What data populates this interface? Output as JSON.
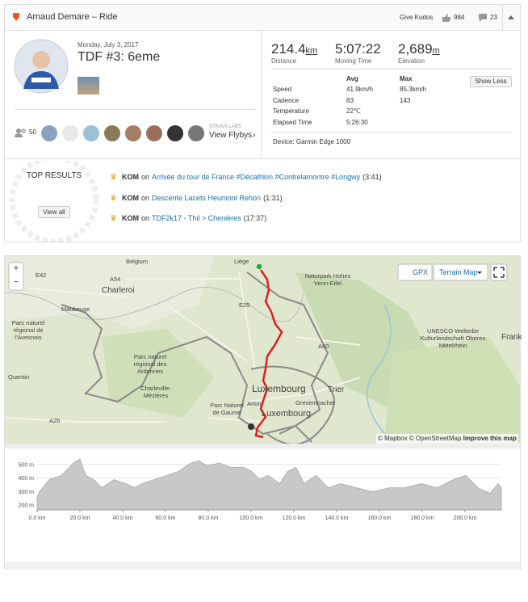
{
  "header": {
    "title": "Arnaud Demare – Ride",
    "kudos_button": "Give Kudos",
    "kudos_count": 984,
    "comment_count": 23
  },
  "profile": {
    "date": "Monday, July 3, 2017",
    "title": "TDF #3: 6eme",
    "athletes_count": 50,
    "flyby_label": "STRAVA LABS",
    "flyby_link": "View Flybys"
  },
  "stats": [
    {
      "value": "214.4",
      "unit": "km",
      "label": "Distance"
    },
    {
      "value": "5:07:22",
      "label": "Moving Time"
    },
    {
      "value": "2,689",
      "unit": "m",
      "label": "Elevation"
    }
  ],
  "details": {
    "headers": [
      "Avg",
      "Max"
    ],
    "rows": [
      [
        "Speed",
        "41.9km/h",
        "85.3km/h"
      ],
      [
        "Cadence",
        "83",
        "143"
      ],
      [
        "Temperature",
        "22℃"
      ],
      [
        "Elapsed Time",
        "5:26:30"
      ]
    ],
    "toggle": "Show Less",
    "device": "Device: Garmin Edge 1000"
  },
  "top_results": {
    "title": "TOP RESULTS",
    "button": "View all",
    "items": [
      {
        "badge": "KOM",
        "on": "on",
        "segment": "Arrivée du tour de France #Décathlon #Contrelamontre #Longwy",
        "time": "(3:41)"
      },
      {
        "badge": "KOM",
        "on": "on",
        "segment": "Descente Lacets Heumont Rehon",
        "time": "(1:31)"
      },
      {
        "badge": "KOM",
        "on": "on",
        "segment": "TDF2k17 - Thil > Chenières",
        "time": "(17:37)"
      }
    ]
  },
  "map": {
    "controls": {
      "zoom_in": "+",
      "zoom_out": "−",
      "gpx": "GPX",
      "layer": "Terrain Map"
    },
    "labels": [
      "Belgium",
      "Liège",
      "E42",
      "A54",
      "Charleroi",
      "Maubeuge",
      "Parc naturel régional de l'Avesnois",
      "E25",
      "Naturpark Hohes Venn-Eifel",
      "UNESCO Welterbe Kulturlandschaft Oberes Mittelrhein",
      "A60",
      "Parc naturel régional des Ardennes",
      "Charleville-Mézières",
      "Quentin",
      "Parc Naturel de Gaume",
      "Luxembourg",
      "Trier",
      "Arlon",
      "Grevenmacher",
      "Luxembourg",
      "A26",
      "Frank"
    ],
    "attribution": [
      "© Mapbox",
      "© OpenStreetMap",
      "Improve this map"
    ]
  },
  "elevation": {
    "x": [
      0,
      1.1,
      5.7,
      11.3,
      17.0,
      20.0,
      22.7,
      26.5,
      30.2,
      35.9,
      41.6,
      45.4,
      49.1,
      54.8,
      60.5,
      66.2,
      71.8,
      75.6,
      79.4,
      85.1,
      90.7,
      96.4,
      100.2,
      104.0,
      107.8,
      113.4,
      117.2,
      121.0,
      124.8,
      130.4,
      136.1,
      141.8,
      149.3,
      156.9,
      164.5,
      172.0,
      179.6,
      187.1,
      194.7,
      200.4,
      206.0,
      211.7,
      215.5,
      217.0
    ],
    "values": [
      260,
      295,
      386,
      417,
      509,
      539,
      417,
      386,
      325,
      386,
      356,
      325,
      356,
      386,
      417,
      448,
      509,
      527,
      490,
      509,
      478,
      478,
      448,
      386,
      417,
      356,
      448,
      478,
      356,
      417,
      325,
      356,
      325,
      295,
      325,
      325,
      356,
      325,
      386,
      417,
      325,
      282,
      356,
      325
    ],
    "xlim": [
      0,
      217
    ],
    "ylim": [
      160,
      570
    ],
    "xticks": [
      {
        "value": 0,
        "label": "0.0 km"
      },
      {
        "value": 20,
        "label": "20.0 km"
      },
      {
        "value": 40,
        "label": "40.0 km"
      },
      {
        "value": 60,
        "label": "60.0 km"
      },
      {
        "value": 80,
        "label": "80.0 km"
      },
      {
        "value": 100,
        "label": "100.0 km"
      },
      {
        "value": 120,
        "label": "120.0 km"
      },
      {
        "value": 140,
        "label": "140.0 km"
      },
      {
        "value": 160,
        "label": "160.0 km"
      },
      {
        "value": 180,
        "label": "180.0 km"
      },
      {
        "value": 200,
        "label": "200.0 km"
      }
    ],
    "yticks": [
      {
        "value": 200,
        "label": "200 m"
      },
      {
        "value": 300,
        "label": "300 m"
      },
      {
        "value": 400,
        "label": "400 m"
      },
      {
        "value": 500,
        "label": "500 m"
      }
    ]
  }
}
